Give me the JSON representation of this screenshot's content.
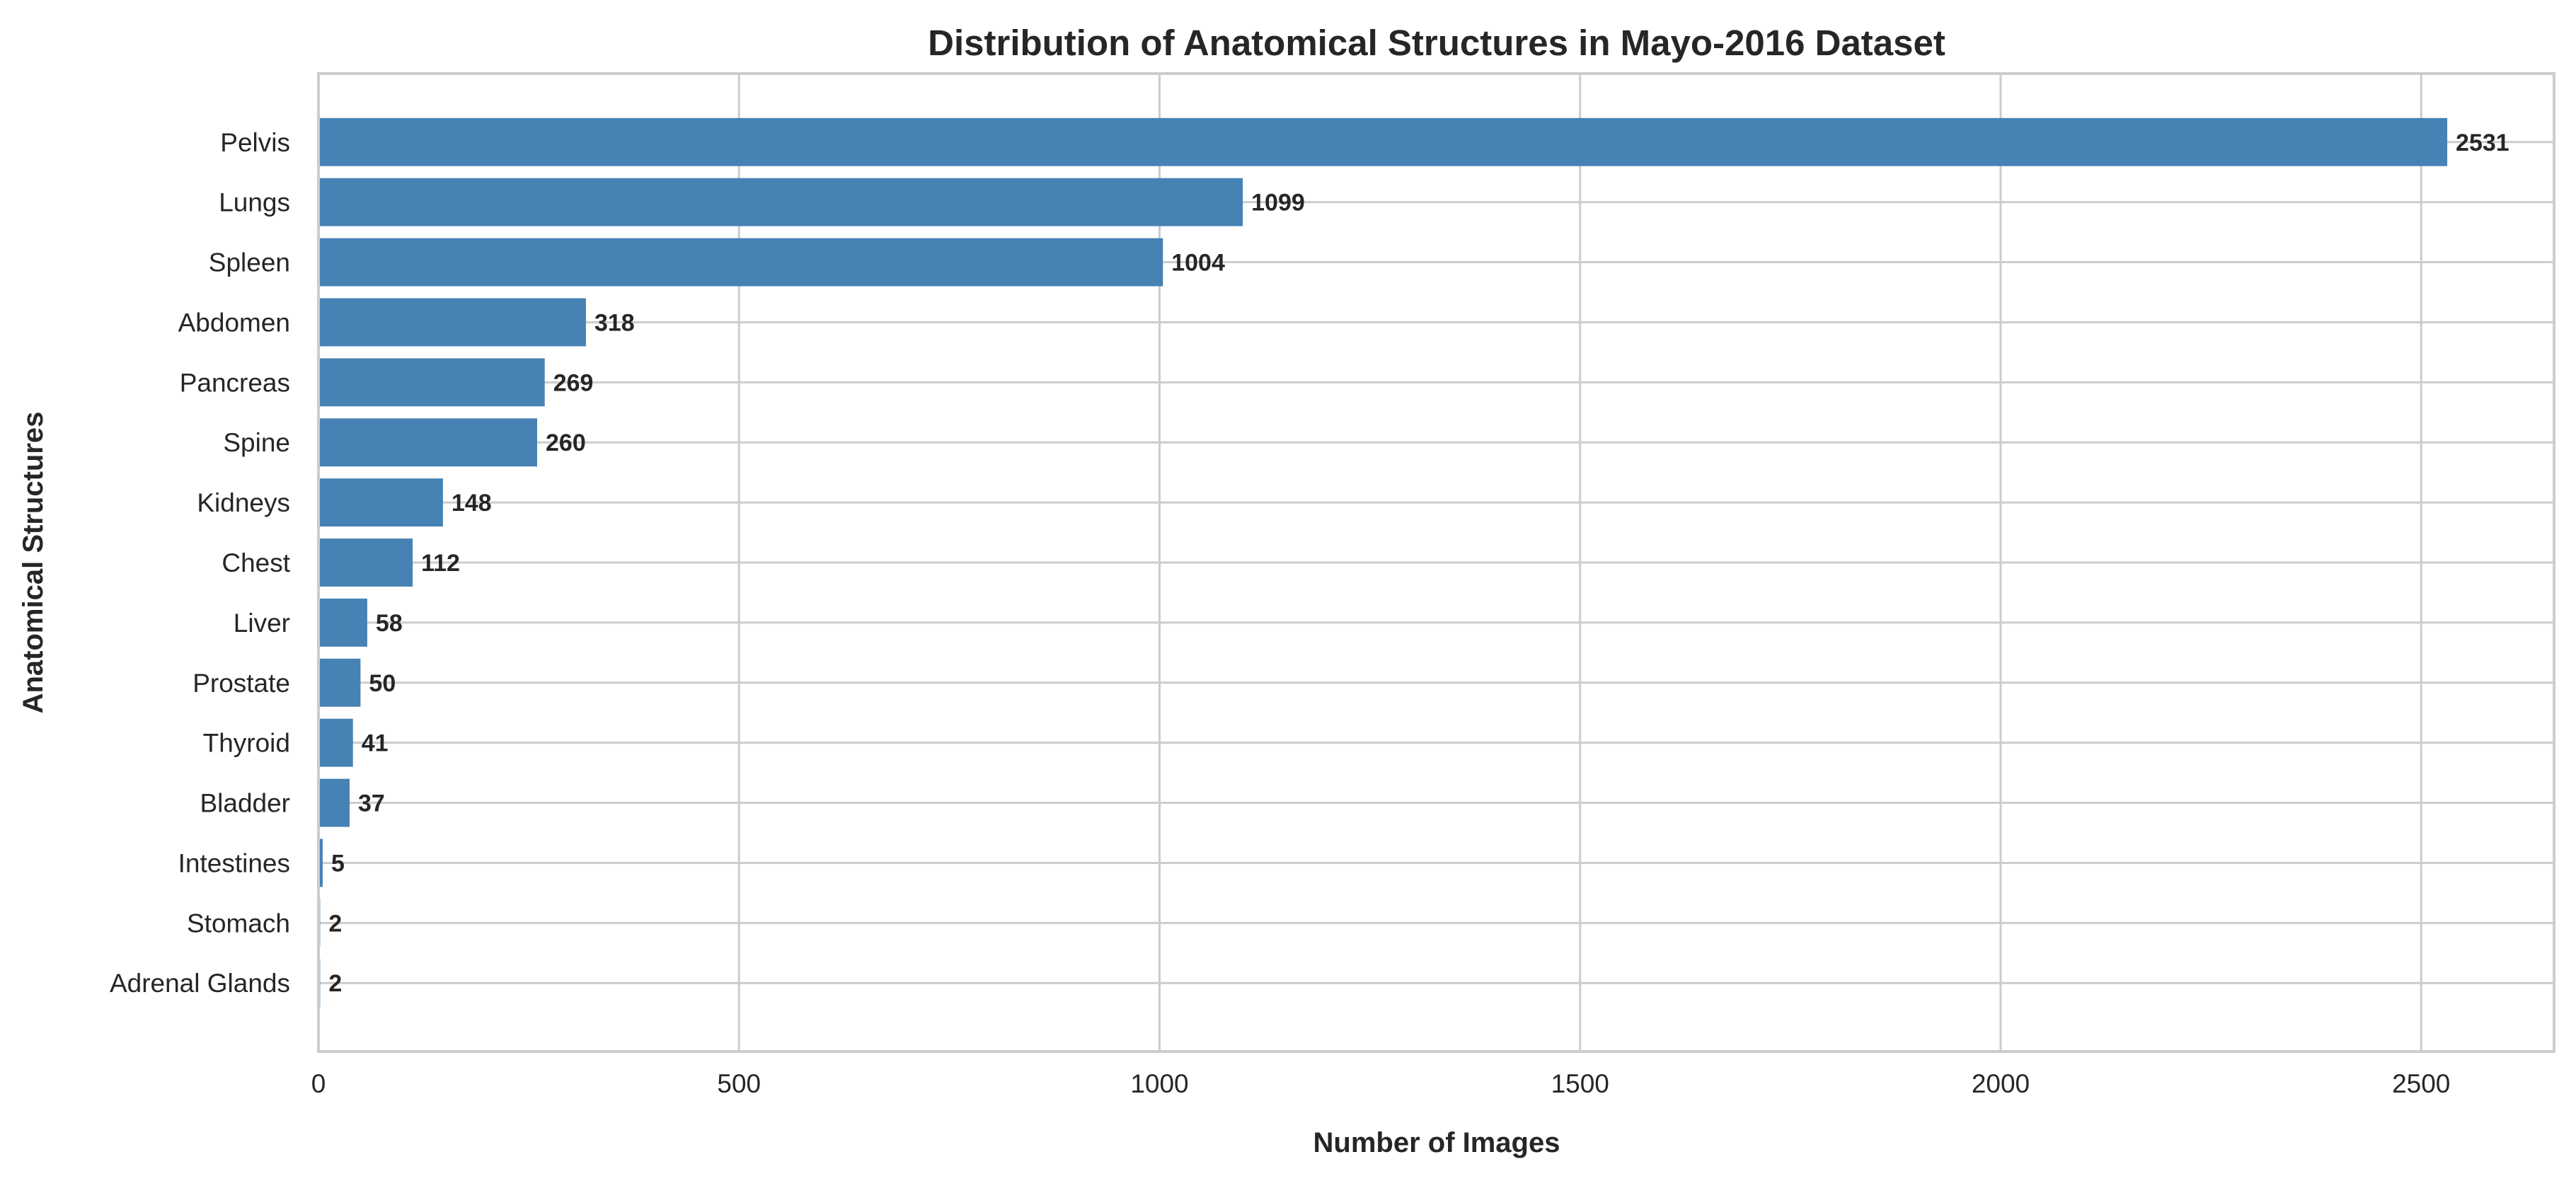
{
  "chart_data": {
    "type": "bar",
    "orientation": "horizontal",
    "title": "Distribution of Anatomical Structures in Mayo-2016 Dataset",
    "xlabel": "Number of Images",
    "ylabel": "Anatomical Structures",
    "categories": [
      "Pelvis",
      "Lungs",
      "Spleen",
      "Abdomen",
      "Pancreas",
      "Spine",
      "Kidneys",
      "Chest",
      "Liver",
      "Prostate",
      "Thyroid",
      "Bladder",
      "Intestines",
      "Stomach",
      "Adrenal Glands"
    ],
    "values": [
      2531,
      1099,
      1004,
      318,
      269,
      260,
      148,
      112,
      58,
      50,
      41,
      37,
      5,
      2,
      2
    ],
    "xlim": [
      0,
      2658
    ],
    "xticks": [
      0,
      500,
      1000,
      1500,
      2000,
      2500
    ],
    "grid": true,
    "data_labels": true,
    "colors": {
      "bar": "#4682b4",
      "grid": "#cccccc",
      "text": "#262626"
    }
  }
}
